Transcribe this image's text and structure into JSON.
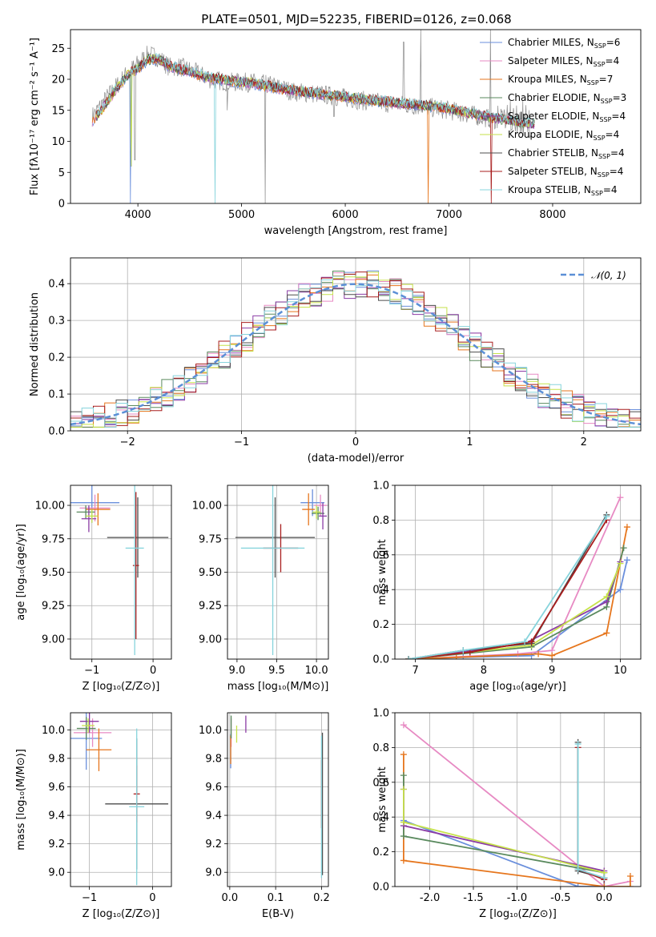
{
  "figure_title": "PLATE=0501, MJD=52235, FIBERID=0126, z=0.068",
  "colors": {
    "Chabrier MILES": "#6a8fdc",
    "Salpeter MILES": "#e78ac3",
    "Kroupa MILES": "#e6761d",
    "Chabrier ELODIE": "#5a8a5e",
    "Salpeter ELODIE": "#8b3ca5",
    "Kroupa ELODIE": "#c6e24a",
    "Chabrier STELIB": "#4c4c4c",
    "Salpeter STELIB": "#a81e1e",
    "Kroupa STELIB": "#87d4dc",
    "data": "#8c8c8c",
    "normal": "#5b8fd6",
    "grid": "#b0b0b0"
  },
  "chart_data": [
    {
      "id": "spectrum",
      "type": "line",
      "xlabel": "wavelength [Angstrom, rest frame]",
      "ylabel": "Flux [fλ10⁻¹⁷ erg cm⁻² s⁻¹ A⁻¹]",
      "xlim": [
        3350,
        8850
      ],
      "ylim": [
        0,
        28
      ],
      "xticks": [
        4000,
        5000,
        6000,
        7000,
        8000
      ],
      "yticks": [
        0,
        5,
        10,
        15,
        20,
        25
      ],
      "grid": false,
      "legend_position": "top-right",
      "legend": [
        {
          "name": "Chabrier MILES",
          "nssp": "6"
        },
        {
          "name": "Salpeter MILES",
          "nssp": "4"
        },
        {
          "name": "Kroupa MILES",
          "nssp": "7"
        },
        {
          "name": "Chabrier ELODIE",
          "nssp": "3"
        },
        {
          "name": "Salpeter ELODIE",
          "nssp": "4"
        },
        {
          "name": "Kroupa ELODIE",
          "nssp": "4"
        },
        {
          "name": "Chabrier STELIB",
          "nssp": "4"
        },
        {
          "name": "Salpeter STELIB",
          "nssp": "4"
        },
        {
          "name": "Kroupa STELIB",
          "nssp": "4"
        }
      ],
      "data_continuum": [
        [
          3560,
          14
        ],
        [
          3700,
          17
        ],
        [
          3800,
          19
        ],
        [
          3900,
          21
        ],
        [
          4000,
          22.5
        ],
        [
          4100,
          24
        ],
        [
          4200,
          23.5
        ],
        [
          4300,
          22
        ],
        [
          4400,
          22
        ],
        [
          4500,
          21.5
        ],
        [
          4700,
          20
        ],
        [
          4900,
          19.5
        ],
        [
          5100,
          19.5
        ],
        [
          5300,
          19
        ],
        [
          5500,
          18
        ],
        [
          5800,
          17.5
        ],
        [
          6000,
          17
        ],
        [
          6200,
          16.5
        ],
        [
          6500,
          16
        ],
        [
          6800,
          15.5
        ],
        [
          7000,
          15
        ],
        [
          7300,
          14
        ],
        [
          7600,
          13
        ],
        [
          7800,
          12
        ]
      ],
      "models_continuum": [
        [
          3560,
          13
        ],
        [
          3700,
          16
        ],
        [
          3800,
          18.5
        ],
        [
          3900,
          20.5
        ],
        [
          4000,
          21.5
        ],
        [
          4100,
          23
        ],
        [
          4200,
          23
        ],
        [
          4300,
          22
        ],
        [
          4400,
          21.5
        ],
        [
          4500,
          21
        ],
        [
          4700,
          20
        ],
        [
          4900,
          19.5
        ],
        [
          5100,
          19.2
        ],
        [
          5300,
          18.5
        ],
        [
          5500,
          18
        ],
        [
          5800,
          17.3
        ],
        [
          6000,
          17
        ],
        [
          6200,
          16.5
        ],
        [
          6500,
          16
        ],
        [
          6800,
          15.5
        ],
        [
          7000,
          15
        ],
        [
          7300,
          14
        ],
        [
          7450,
          13.5
        ]
      ]
    },
    {
      "id": "residuals",
      "type": "histogram",
      "xlabel": "(data-model)/error",
      "ylabel": "Normed distribution",
      "xlim": [
        -2.5,
        2.5
      ],
      "ylim": [
        0,
        0.47
      ],
      "xticks": [
        -2,
        -1,
        0,
        1,
        2
      ],
      "yticks": [
        0.0,
        0.1,
        0.2,
        0.3,
        0.4
      ],
      "grid": true,
      "bin_width": 0.1,
      "bin_start": -2.5,
      "reference_curve": "N(0,1)",
      "legend_label": "𝒩(0, 1)",
      "legend_position": "top-right"
    },
    {
      "id": "age_vs_Z",
      "type": "errorbar",
      "xlabel": "Z [log₁₀(Z/Z⊙)]",
      "ylabel": "age  [log₁₀(age/yr)]",
      "xlim": [
        -1.35,
        0.3
      ],
      "ylim": [
        8.85,
        10.15
      ],
      "xticks": [
        -1,
        0
      ],
      "yticks": [
        9.0,
        9.25,
        9.5,
        9.75,
        10.0
      ],
      "grid": true,
      "points": [
        {
          "series": "Chabrier MILES",
          "x": -1.0,
          "y": 10.02,
          "xerr": 0.45,
          "yerr": 0.15
        },
        {
          "series": "Salpeter MILES",
          "x": -0.95,
          "y": 9.98,
          "xerr": 0.25,
          "yerr": 0.1
        },
        {
          "series": "Kroupa MILES",
          "x": -0.9,
          "y": 9.97,
          "xerr": 0.2,
          "yerr": 0.12
        },
        {
          "series": "Chabrier ELODIE",
          "x": -1.1,
          "y": 9.95,
          "xerr": 0.15,
          "yerr": 0.05
        },
        {
          "series": "Salpeter ELODIE",
          "x": -1.05,
          "y": 9.9,
          "xerr": 0.12,
          "yerr": 0.1
        },
        {
          "series": "Kroupa ELODIE",
          "x": -1.0,
          "y": 9.92,
          "xerr": 0.1,
          "yerr": 0.05
        },
        {
          "series": "Chabrier STELIB",
          "x": -0.25,
          "y": 9.76,
          "xerr": 0.5,
          "yerr": 0.3
        },
        {
          "series": "Salpeter STELIB",
          "x": -0.28,
          "y": 9.55,
          "xerr": 0.05,
          "yerr": 0.55
        },
        {
          "series": "Kroupa STELIB",
          "x": -0.3,
          "y": 9.68,
          "xerr": 0.15,
          "yerr": 0.8
        }
      ]
    },
    {
      "id": "age_vs_mass",
      "type": "errorbar",
      "xlabel": "mass [log₁₀(M/M⊙)]",
      "ylabel": "",
      "xlim": [
        8.88,
        10.15
      ],
      "ylim": [
        8.85,
        10.15
      ],
      "xticks": [
        9.0,
        9.5,
        10.0
      ],
      "yticks": [
        9.0,
        9.25,
        9.5,
        9.75,
        10.0
      ],
      "grid": true,
      "points": [
        {
          "series": "Chabrier MILES",
          "x": 9.95,
          "y": 10.02,
          "xerr": 0.15,
          "yerr": 0.1
        },
        {
          "series": "Salpeter MILES",
          "x": 10.05,
          "y": 10.0,
          "xerr": 0.08,
          "yerr": 0.08
        },
        {
          "series": "Kroupa MILES",
          "x": 9.9,
          "y": 9.97,
          "xerr": 0.08,
          "yerr": 0.12
        },
        {
          "series": "Chabrier ELODIE",
          "x": 10.02,
          "y": 9.94,
          "xerr": 0.08,
          "yerr": 0.05
        },
        {
          "series": "Salpeter ELODIE",
          "x": 10.08,
          "y": 9.92,
          "xerr": 0.05,
          "yerr": 0.1
        },
        {
          "series": "Kroupa ELODIE",
          "x": 10.0,
          "y": 9.95,
          "xerr": 0.05,
          "yerr": 0.05
        },
        {
          "series": "Chabrier STELIB",
          "x": 9.48,
          "y": 9.76,
          "xerr": 0.5,
          "yerr": 0.3
        },
        {
          "series": "Salpeter STELIB",
          "x": 9.55,
          "y": 9.68,
          "xerr": 0.22,
          "yerr": 0.18
        },
        {
          "series": "Kroupa STELIB",
          "x": 9.45,
          "y": 9.68,
          "xerr": 0.4,
          "yerr": 0.8
        }
      ]
    },
    {
      "id": "weight_vs_age",
      "type": "line",
      "xlabel": "age  [log₁₀(age/yr)]",
      "ylabel": "mass weight",
      "xlim": [
        6.7,
        10.3
      ],
      "ylim": [
        0,
        1.0
      ],
      "xticks": [
        7,
        8,
        9,
        10
      ],
      "yticks": [
        0.0,
        0.2,
        0.4,
        0.6,
        0.8,
        1.0
      ],
      "grid": true,
      "series": [
        {
          "name": "Chabrier MILES",
          "x": [
            6.9,
            7.7,
            8.7,
            10.0,
            10.1
          ],
          "y": [
            0.0,
            0.01,
            0.02,
            0.4,
            0.57
          ]
        },
        {
          "name": "Salpeter MILES",
          "x": [
            6.9,
            8.5,
            9.0,
            10.0
          ],
          "y": [
            0.0,
            0.03,
            0.05,
            0.93
          ]
        },
        {
          "name": "Kroupa MILES",
          "x": [
            6.9,
            7.6,
            8.8,
            9.0,
            9.8,
            10.1
          ],
          "y": [
            0.0,
            0.01,
            0.03,
            0.02,
            0.15,
            0.76
          ]
        },
        {
          "name": "Chabrier ELODIE",
          "x": [
            6.9,
            8.7,
            9.8,
            10.05
          ],
          "y": [
            0.0,
            0.07,
            0.3,
            0.64
          ]
        },
        {
          "name": "Salpeter ELODIE",
          "x": [
            6.9,
            8.6,
            9.8,
            10.0
          ],
          "y": [
            0.0,
            0.09,
            0.33,
            0.56
          ]
        },
        {
          "name": "Kroupa ELODIE",
          "x": [
            6.9,
            8.7,
            9.8,
            10.0
          ],
          "y": [
            0.0,
            0.08,
            0.36,
            0.55
          ]
        },
        {
          "name": "Chabrier STELIB",
          "x": [
            6.9,
            7.7,
            8.7,
            9.8
          ],
          "y": [
            0.0,
            0.05,
            0.09,
            0.83
          ]
        },
        {
          "name": "Salpeter STELIB",
          "x": [
            6.9,
            7.8,
            8.7,
            9.8
          ],
          "y": [
            0.0,
            0.04,
            0.1,
            0.8
          ]
        },
        {
          "name": "Kroupa STELIB",
          "x": [
            6.9,
            7.7,
            8.6,
            9.8
          ],
          "y": [
            0.0,
            0.05,
            0.1,
            0.82
          ]
        }
      ]
    },
    {
      "id": "mass_vs_Z",
      "type": "errorbar",
      "xlabel": "Z [log₁₀(Z/Z⊙)]",
      "ylabel": "mass [log₁₀(M/M⊙)]",
      "xlim": [
        -1.3,
        0.3
      ],
      "ylim": [
        8.9,
        10.12
      ],
      "xticks": [
        -1,
        0
      ],
      "yticks": [
        9.0,
        9.2,
        9.4,
        9.6,
        9.8,
        10.0
      ],
      "grid": true,
      "points": [
        {
          "series": "Chabrier MILES",
          "x": -1.05,
          "y": 9.94,
          "xerr": 0.25,
          "yerr": 0.22
        },
        {
          "series": "Salpeter MILES",
          "x": -0.95,
          "y": 9.98,
          "xerr": 0.3,
          "yerr": 0.1
        },
        {
          "series": "Kroupa MILES",
          "x": -0.85,
          "y": 9.86,
          "xerr": 0.2,
          "yerr": 0.15
        },
        {
          "series": "Chabrier ELODIE",
          "x": -1.05,
          "y": 10.01,
          "xerr": 0.15,
          "yerr": 0.08
        },
        {
          "series": "Salpeter ELODIE",
          "x": -1.0,
          "y": 10.06,
          "xerr": 0.15,
          "yerr": 0.08
        },
        {
          "series": "Kroupa ELODIE",
          "x": -1.02,
          "y": 10.03,
          "xerr": 0.1,
          "yerr": 0.05
        },
        {
          "series": "Chabrier STELIB",
          "x": -0.25,
          "y": 9.48,
          "xerr": 0.5,
          "yerr": 0.46
        },
        {
          "series": "Salpeter STELIB",
          "x": -0.25,
          "y": 9.55,
          "xerr": 0.05,
          "yerr": 0.2
        },
        {
          "series": "Kroupa STELIB",
          "x": -0.25,
          "y": 9.46,
          "xerr": 0.12,
          "yerr": 0.55
        }
      ]
    },
    {
      "id": "mass_vs_ebv",
      "type": "errorbar",
      "xlabel": "E(B-V)",
      "ylabel": "",
      "xlim": [
        -0.005,
        0.215
      ],
      "ylim": [
        8.9,
        10.12
      ],
      "xticks": [
        0.0,
        0.1,
        0.2
      ],
      "yticks": [
        9.0,
        9.2,
        9.4,
        9.6,
        9.8,
        10.0
      ],
      "grid": true,
      "points": [
        {
          "series": "Chabrier MILES",
          "x": 0.002,
          "y": 9.85,
          "xerr": 0,
          "yerr": 0.12
        },
        {
          "series": "Salpeter MILES",
          "x": 0.003,
          "y": 9.98,
          "xerr": 0,
          "yerr": 0.1
        },
        {
          "series": "Kroupa MILES",
          "x": 0.002,
          "y": 9.86,
          "xerr": 0,
          "yerr": 0.1
        },
        {
          "series": "Chabrier ELODIE",
          "x": 0.003,
          "y": 10.02,
          "xerr": 0,
          "yerr": 0.08
        },
        {
          "series": "Salpeter ELODIE",
          "x": 0.035,
          "y": 10.04,
          "xerr": 0,
          "yerr": 0.06
        },
        {
          "series": "Kroupa ELODIE",
          "x": 0.015,
          "y": 9.97,
          "xerr": 0,
          "yerr": 0.06
        },
        {
          "series": "Chabrier STELIB",
          "x": 0.202,
          "y": 9.48,
          "xerr": 0,
          "yerr": 0.5
        },
        {
          "series": "Salpeter STELIB",
          "x": 0.2,
          "y": 9.55,
          "xerr": 0,
          "yerr": 0.24
        },
        {
          "series": "Kroupa STELIB",
          "x": 0.2,
          "y": 9.46,
          "xerr": 0,
          "yerr": 0.5
        }
      ]
    },
    {
      "id": "weight_vs_Z",
      "type": "line",
      "xlabel": "Z [log₁₀(Z/Z⊙)]",
      "ylabel": "mass weight",
      "xlim": [
        -2.4,
        0.42
      ],
      "ylim": [
        0,
        1.0
      ],
      "xticks": [
        -2.0,
        -1.5,
        -1.0,
        -0.5,
        0.0
      ],
      "yticks": [
        0.0,
        0.2,
        0.4,
        0.6,
        0.8,
        1.0
      ],
      "grid": true,
      "series": [
        {
          "name": "Chabrier MILES",
          "x": [
            -2.3,
            -0.3,
            0.0,
            0.0
          ],
          "y": [
            0.38,
            0.0,
            0.0,
            0.05
          ]
        },
        {
          "name": "Salpeter MILES",
          "x": [
            -2.3,
            0.0,
            0.3
          ],
          "y": [
            0.93,
            0.0,
            0.03
          ]
        },
        {
          "name": "Kroupa MILES",
          "x": [
            -2.3,
            -2.3,
            0.0,
            0.3,
            0.3
          ],
          "y": [
            0.76,
            0.15,
            0.0,
            0.0,
            0.06
          ]
        },
        {
          "name": "Chabrier ELODIE",
          "x": [
            -2.3,
            -2.3,
            0.0,
            0.0
          ],
          "y": [
            0.64,
            0.29,
            0.08,
            0.05
          ]
        },
        {
          "name": "Salpeter ELODIE",
          "x": [
            -2.3,
            -2.3,
            0.0
          ],
          "y": [
            0.56,
            0.35,
            0.09
          ]
        },
        {
          "name": "Kroupa ELODIE",
          "x": [
            -2.3,
            -2.3,
            0.0
          ],
          "y": [
            0.56,
            0.37,
            0.08
          ]
        },
        {
          "name": "Chabrier STELIB",
          "x": [
            -0.3,
            -0.3,
            0.0
          ],
          "y": [
            0.83,
            0.09,
            0.05
          ]
        },
        {
          "name": "Salpeter STELIB",
          "x": [
            -0.3,
            -0.3,
            0.0
          ],
          "y": [
            0.8,
            0.1,
            0.04
          ]
        },
        {
          "name": "Kroupa STELIB",
          "x": [
            -0.3,
            -0.3,
            0.0
          ],
          "y": [
            0.82,
            0.1,
            0.05
          ]
        }
      ]
    }
  ]
}
